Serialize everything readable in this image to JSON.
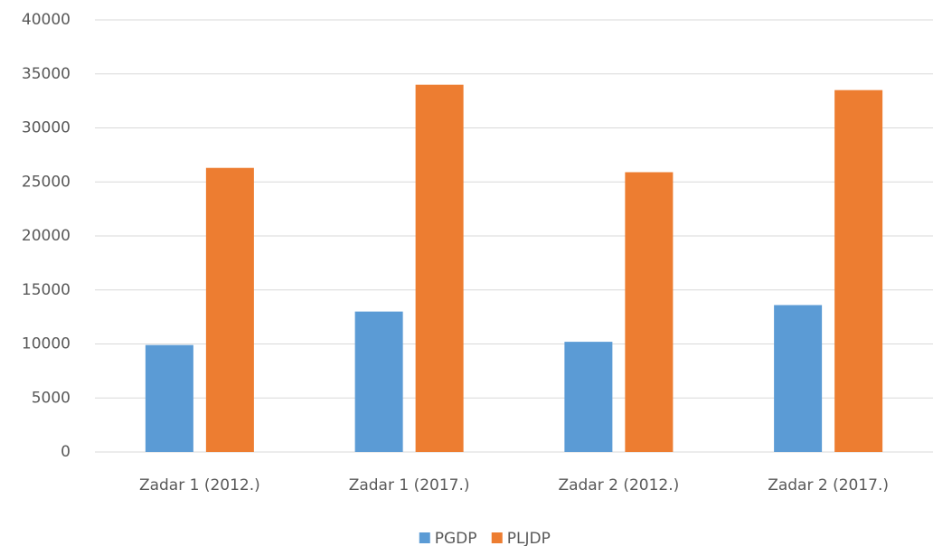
{
  "chart_data": {
    "type": "bar",
    "categories": [
      "Zadar 1 (2012.)",
      "Zadar 1 (2017.)",
      "Zadar 2 (2012.)",
      "Zadar 2 (2017.)"
    ],
    "series": [
      {
        "name": "PGDP",
        "color": "#5b9bd5",
        "values": [
          9900,
          13000,
          10200,
          13600
        ]
      },
      {
        "name": "PLJDP",
        "color": "#ed7d31",
        "values": [
          26300,
          34000,
          25900,
          33500
        ]
      }
    ],
    "ylim": [
      0,
      40000
    ],
    "yticks": [
      0,
      5000,
      10000,
      15000,
      20000,
      25000,
      30000,
      35000,
      40000
    ],
    "grid": true,
    "legend": "bottom"
  }
}
